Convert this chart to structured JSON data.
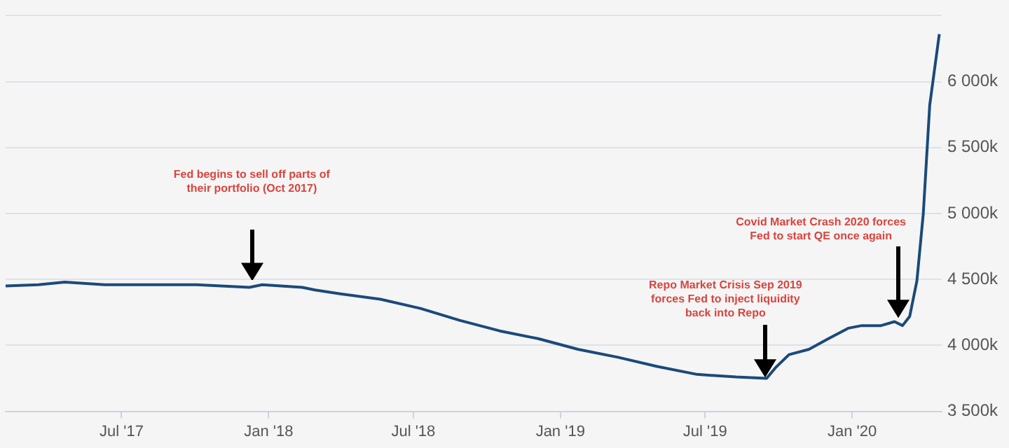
{
  "chart_data": {
    "type": "line",
    "x": [
      "2017-02-06",
      "2017-03-19",
      "2017-04-21",
      "2017-06-10",
      "2017-07-29",
      "2017-10-03",
      "2017-12-08",
      "2017-12-24",
      "2018-02-12",
      "2018-02-28",
      "2018-04-02",
      "2018-05-21",
      "2018-07-10",
      "2018-08-28",
      "2018-10-17",
      "2018-12-05",
      "2019-01-23",
      "2019-03-14",
      "2019-05-02",
      "2019-06-21",
      "2019-08-09",
      "2019-09-16",
      "2019-09-27",
      "2019-10-14",
      "2019-11-08",
      "2019-12-02",
      "2019-12-27",
      "2020-01-13",
      "2020-02-06",
      "2020-02-23",
      "2020-03-04",
      "2020-03-13",
      "2020-03-22",
      "2020-03-30",
      "2020-04-07",
      "2020-04-19"
    ],
    "series": [
      {
        "color": "#1b4a7a",
        "values": [
          4450,
          4460,
          4480,
          4460,
          4460,
          4460,
          4440,
          4460,
          4440,
          4420,
          4390,
          4350,
          4280,
          4190,
          4110,
          4050,
          3970,
          3910,
          3840,
          3780,
          3760,
          3750,
          3830,
          3930,
          3970,
          4050,
          4130,
          4150,
          4150,
          4180,
          4150,
          4220,
          4490,
          5000,
          5820,
          6360
        ]
      }
    ],
    "xlim": [
      "2017-02-06",
      "2020-04-22"
    ],
    "xticks": [
      {
        "value": "2017-07-01",
        "label": "Jul '17"
      },
      {
        "value": "2018-01-01",
        "label": "Jan '18"
      },
      {
        "value": "2018-07-01",
        "label": "Jul '18"
      },
      {
        "value": "2019-01-01",
        "label": "Jan '19"
      },
      {
        "value": "2019-07-01",
        "label": "Jul '19"
      },
      {
        "value": "2020-01-01",
        "label": "Jan '20"
      }
    ],
    "ylim": [
      3500,
      6500
    ],
    "yticks": [
      {
        "value": 3500,
        "label": "3 500k"
      },
      {
        "value": 4000,
        "label": "4 000k"
      },
      {
        "value": 4500,
        "label": "4 500k"
      },
      {
        "value": 5000,
        "label": "5 000k"
      },
      {
        "value": 5500,
        "label": "5 500k"
      },
      {
        "value": 6000,
        "label": "6 000k"
      },
      {
        "value": 6500,
        "label": null
      }
    ],
    "grid": "y",
    "legend": false,
    "marker": "none",
    "line_style": "solid",
    "annotations": [
      "Fed begins to sell off parts of their portfolio (Oct 2017)",
      "Repo Market Crisis Sep 2019 forces Fed to inject liquidity back into Repo",
      "Covid Market Crash 2020 forces Fed to start QE once again"
    ]
  }
}
